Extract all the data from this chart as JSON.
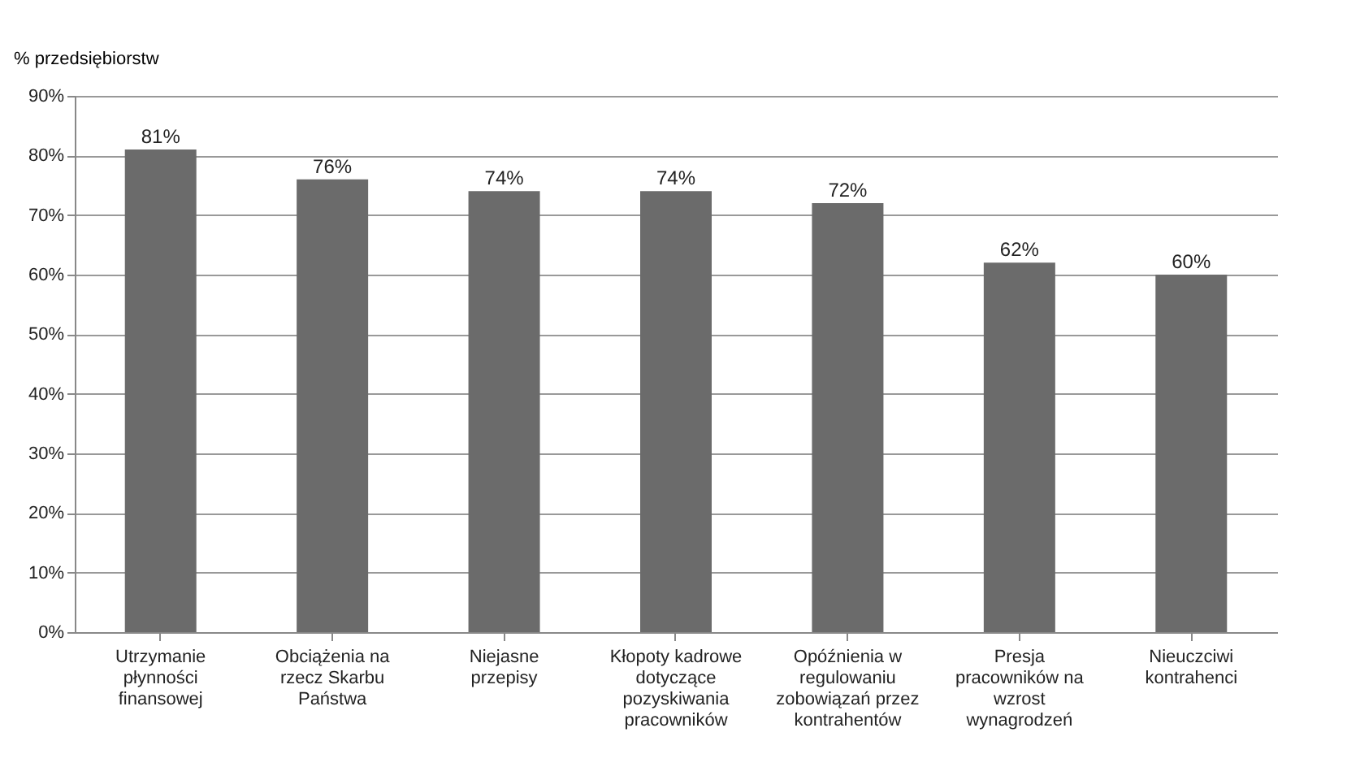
{
  "chart_data": {
    "type": "bar",
    "ylabel": "% przedsiębiorstw",
    "categories": [
      "Utrzymanie płynności finansowej",
      "Obciążenia na rzecz Skarbu Państwa",
      "Niejasne przepisy",
      "Kłopoty kadrowe dotyczące pozyskiwania pracowników",
      "Opóźnienia w regulowaniu zobowiązań przez kontrahentów",
      "Presja pracowników na wzrost wynagrodzeń",
      "Nieuczciwi kontrahenci"
    ],
    "values": [
      81,
      76,
      74,
      74,
      72,
      62,
      60
    ],
    "value_labels": [
      "81%",
      "76%",
      "74%",
      "74%",
      "72%",
      "62%",
      "60%"
    ],
    "color": "#6b6b6b",
    "ylim": [
      0,
      90
    ],
    "yticks": [
      {
        "value": 0,
        "label": "0%"
      },
      {
        "value": 10,
        "label": "10%"
      },
      {
        "value": 20,
        "label": "20%"
      },
      {
        "value": 30,
        "label": "30%"
      },
      {
        "value": 40,
        "label": "40%"
      },
      {
        "value": 50,
        "label": "50%"
      },
      {
        "value": 60,
        "label": "60%"
      },
      {
        "value": 70,
        "label": "70%"
      },
      {
        "value": 80,
        "label": "80%"
      },
      {
        "value": 90,
        "label": "90%"
      }
    ],
    "grid": "y"
  }
}
